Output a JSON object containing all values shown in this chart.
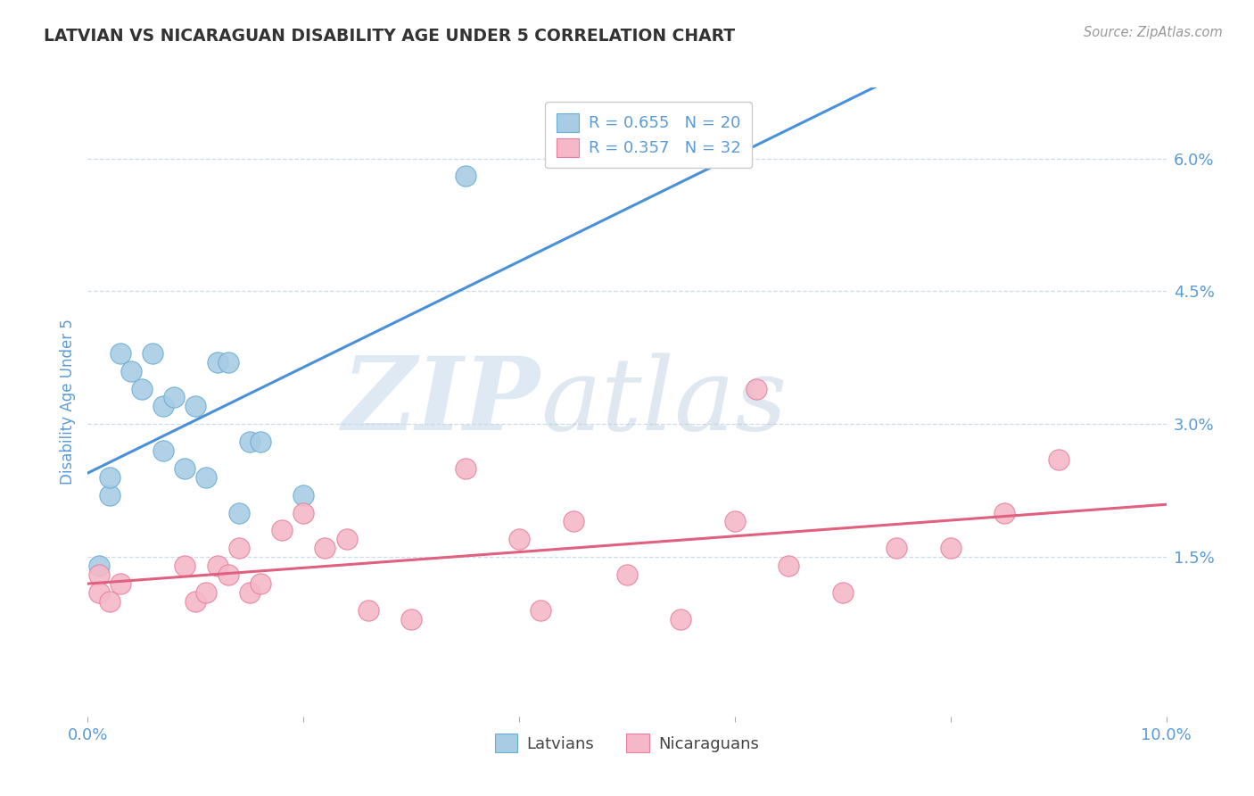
{
  "title": "LATVIAN VS NICARAGUAN DISABILITY AGE UNDER 5 CORRELATION CHART",
  "source": "Source: ZipAtlas.com",
  "ylabel": "Disability Age Under 5",
  "xlim": [
    0.0,
    0.1
  ],
  "ylim": [
    -0.003,
    0.068
  ],
  "yticks": [
    0.015,
    0.03,
    0.045,
    0.06
  ],
  "ytick_labels": [
    "1.5%",
    "3.0%",
    "4.5%",
    "6.0%"
  ],
  "xticks": [
    0.0,
    0.02,
    0.04,
    0.06,
    0.08,
    0.1
  ],
  "xtick_labels": [
    "0.0%",
    "",
    "",
    "",
    "",
    "10.0%"
  ],
  "latvian_color": "#a8cce4",
  "latvian_edge": "#6aadd5",
  "nicaraguan_color": "#f4b8c8",
  "nicaraguan_edge": "#e87fa0",
  "regression_blue": "#4a90d9",
  "regression_pink": "#e06080",
  "watermark_zip": "ZIP",
  "watermark_atlas": "atlas",
  "legend_r_latvian": "R = 0.655",
  "legend_n_latvian": "N = 20",
  "legend_r_nicaraguan": "R = 0.357",
  "legend_n_nicaraguan": "N = 32",
  "latvian_x": [
    0.001,
    0.002,
    0.002,
    0.003,
    0.004,
    0.005,
    0.006,
    0.007,
    0.007,
    0.008,
    0.009,
    0.01,
    0.011,
    0.012,
    0.013,
    0.014,
    0.015,
    0.016,
    0.02,
    0.035
  ],
  "latvian_y": [
    0.014,
    0.022,
    0.024,
    0.038,
    0.036,
    0.034,
    0.038,
    0.032,
    0.027,
    0.033,
    0.025,
    0.032,
    0.024,
    0.037,
    0.037,
    0.02,
    0.028,
    0.028,
    0.022,
    0.058
  ],
  "nicaraguan_x": [
    0.001,
    0.001,
    0.002,
    0.003,
    0.009,
    0.01,
    0.011,
    0.012,
    0.013,
    0.014,
    0.015,
    0.016,
    0.018,
    0.02,
    0.022,
    0.024,
    0.026,
    0.03,
    0.035,
    0.04,
    0.042,
    0.045,
    0.05,
    0.055,
    0.06,
    0.062,
    0.065,
    0.07,
    0.075,
    0.08,
    0.085,
    0.09
  ],
  "nicaraguan_y": [
    0.013,
    0.011,
    0.01,
    0.012,
    0.014,
    0.01,
    0.011,
    0.014,
    0.013,
    0.016,
    0.011,
    0.012,
    0.018,
    0.02,
    0.016,
    0.017,
    0.009,
    0.008,
    0.025,
    0.017,
    0.009,
    0.019,
    0.013,
    0.008,
    0.019,
    0.034,
    0.014,
    0.011,
    0.016,
    0.016,
    0.02,
    0.026
  ],
  "grid_color": "#c8d8e8",
  "bg_color": "#ffffff",
  "title_color": "#333333",
  "label_color": "#5b9bd5",
  "tick_color": "#5b9bd5"
}
